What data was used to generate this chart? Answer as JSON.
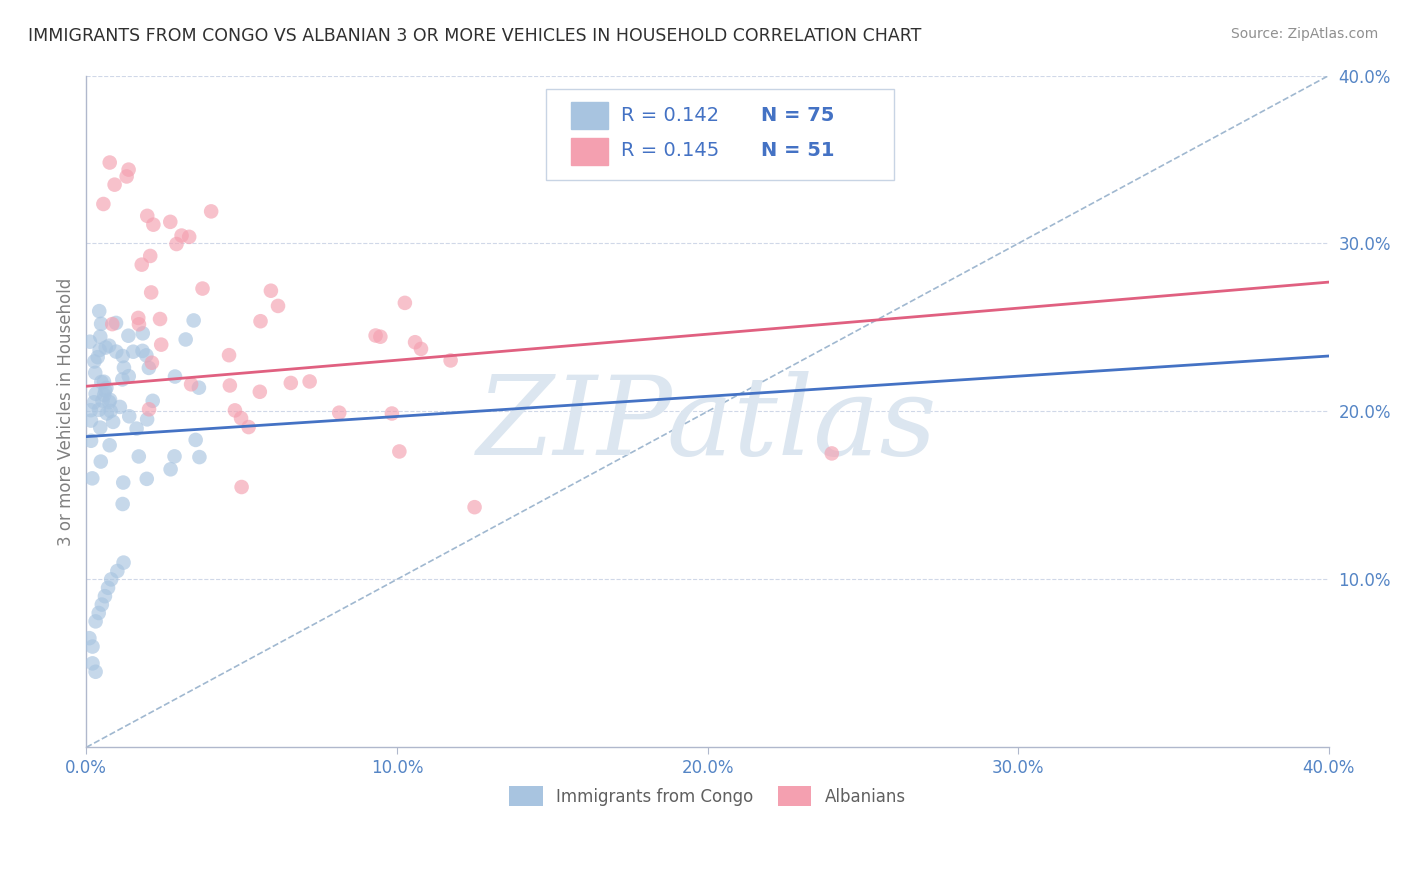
{
  "title": "IMMIGRANTS FROM CONGO VS ALBANIAN 3 OR MORE VEHICLES IN HOUSEHOLD CORRELATION CHART",
  "source": "Source: ZipAtlas.com",
  "ylabel": "3 or more Vehicles in Household",
  "xlim": [
    0.0,
    0.4
  ],
  "ylim": [
    0.0,
    0.4
  ],
  "congo_R": 0.142,
  "congo_N": 75,
  "albanian_R": 0.145,
  "albanian_N": 51,
  "congo_color": "#a8c4e0",
  "albanian_color": "#f4a0b0",
  "congo_line_color": "#4472c4",
  "albanian_line_color": "#e06080",
  "diagonal_color": "#a0b8d0",
  "grid_color": "#d0d8e8",
  "axis_color": "#b0b8cc",
  "tick_color": "#5585c5",
  "watermark_color": "#dce6f0",
  "title_color": "#303030",
  "legend_color": "#4472c4",
  "background_color": "#ffffff"
}
